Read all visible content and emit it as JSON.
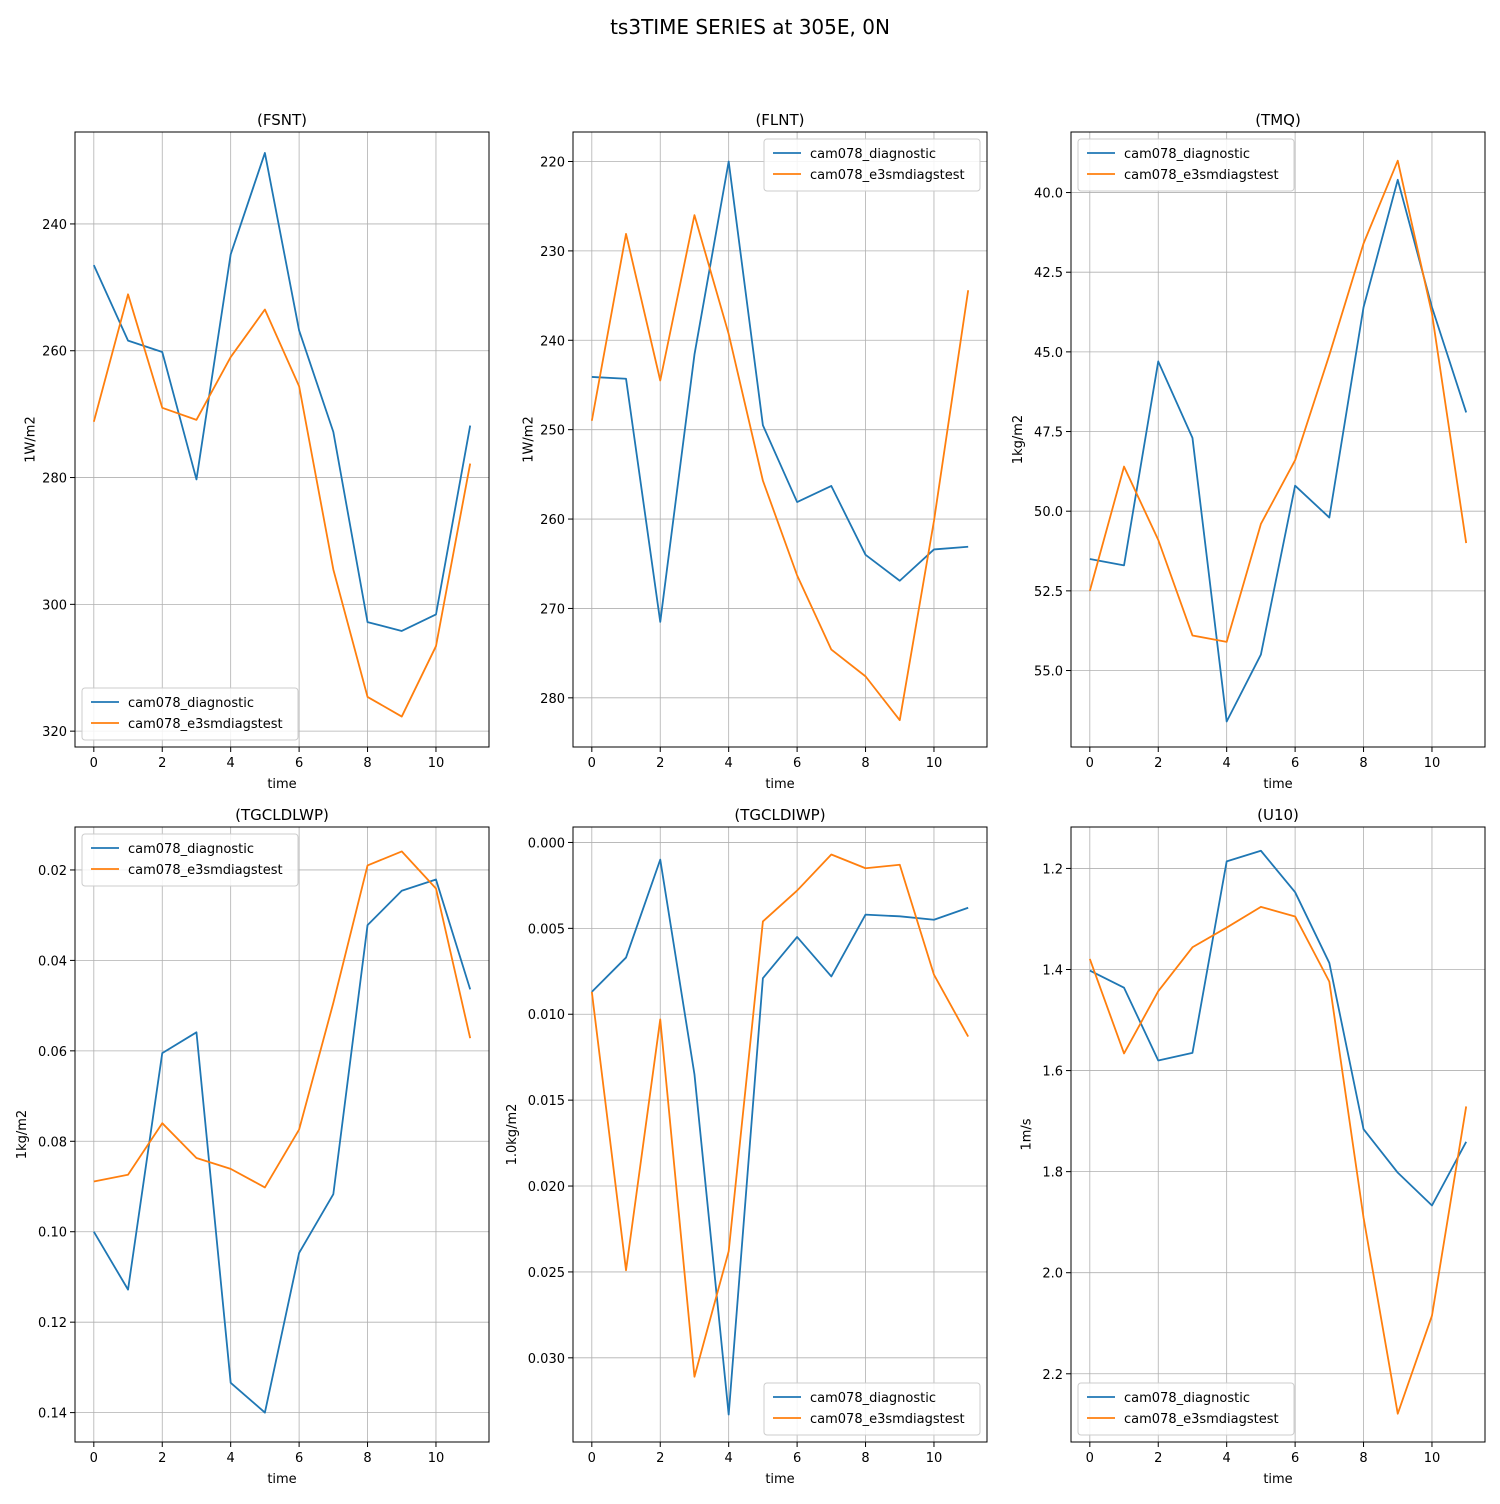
{
  "figure": {
    "title": "ts3TIME SERIES at 305E, 0N"
  },
  "colors": {
    "series1": "#1f77b4",
    "series2": "#ff7f0e",
    "grid": "#b0b0b0"
  },
  "chart_data": [
    {
      "type": "line",
      "title": "(FSNT)",
      "xlabel": "time",
      "ylabel": "1W/m2",
      "xlim": [
        -0.55,
        11.55
      ],
      "ylim": [
        225.5,
        322.5
      ],
      "y_inverted": true,
      "xticks": [
        0,
        2,
        4,
        6,
        8,
        10
      ],
      "yticks": [
        240,
        260,
        280,
        300,
        320
      ],
      "ytick_labels": [
        "240",
        "260",
        "280",
        "300",
        "320"
      ],
      "legend": "lower-left",
      "grid": true,
      "x": [
        0,
        1,
        2,
        3,
        4,
        5,
        6,
        7,
        8,
        9,
        10,
        11
      ],
      "series": [
        {
          "name": "cam078_diagnostic",
          "values": [
            246.5,
            258.4,
            260.2,
            280.3,
            244.8,
            228.8,
            256.8,
            272.8,
            302.8,
            304.2,
            301.6,
            271.8
          ]
        },
        {
          "name": "cam078_e3smdiagstest",
          "values": [
            271.2,
            251.1,
            269.0,
            270.9,
            261.0,
            253.5,
            265.6,
            294.5,
            314.6,
            317.7,
            306.6,
            277.8
          ]
        }
      ]
    },
    {
      "type": "line",
      "title": "(FLNT)",
      "xlabel": "time",
      "ylabel": "1W/m2",
      "xlim": [
        -0.55,
        11.55
      ],
      "ylim": [
        216.7,
        285.5
      ],
      "y_inverted": true,
      "xticks": [
        0,
        2,
        4,
        6,
        8,
        10
      ],
      "yticks": [
        220,
        230,
        240,
        250,
        260,
        270,
        280
      ],
      "ytick_labels": [
        "220",
        "230",
        "240",
        "250",
        "260",
        "270",
        "280"
      ],
      "legend": "top-right",
      "grid": true,
      "x": [
        0,
        1,
        2,
        3,
        4,
        5,
        6,
        7,
        8,
        9,
        10,
        11
      ],
      "series": [
        {
          "name": "cam078_diagnostic",
          "values": [
            244.1,
            244.3,
            271.5,
            241.6,
            220.0,
            249.5,
            258.1,
            256.3,
            264.0,
            266.9,
            263.4,
            263.1
          ]
        },
        {
          "name": "cam078_e3smdiagstest",
          "values": [
            249.0,
            228.1,
            244.5,
            226.0,
            239.3,
            255.7,
            266.3,
            274.6,
            277.6,
            282.5,
            260.2,
            234.4
          ]
        }
      ]
    },
    {
      "type": "line",
      "title": "(TMQ)",
      "xlabel": "time",
      "ylabel": "1kg/m2",
      "xlim": [
        -0.55,
        11.55
      ],
      "ylim": [
        38.1,
        57.4
      ],
      "y_inverted": true,
      "xticks": [
        0,
        2,
        4,
        6,
        8,
        10
      ],
      "yticks": [
        40.0,
        42.5,
        45.0,
        47.5,
        50.0,
        52.5,
        55.0
      ],
      "ytick_labels": [
        "40.0",
        "42.5",
        "45.0",
        "47.5",
        "50.0",
        "52.5",
        "55.0"
      ],
      "legend": "top-left",
      "grid": true,
      "x": [
        0,
        1,
        2,
        3,
        4,
        5,
        6,
        7,
        8,
        9,
        10,
        11
      ],
      "series": [
        {
          "name": "cam078_diagnostic",
          "values": [
            51.5,
            51.7,
            45.3,
            47.7,
            56.6,
            54.5,
            49.2,
            50.2,
            43.6,
            39.6,
            43.6,
            46.9
          ]
        },
        {
          "name": "cam078_e3smdiagstest",
          "values": [
            52.5,
            48.6,
            50.9,
            53.9,
            54.1,
            50.4,
            48.4,
            45.1,
            41.6,
            39.0,
            43.8,
            51.0
          ]
        }
      ]
    },
    {
      "type": "line",
      "title": "(TGCLDLWP)",
      "xlabel": "time",
      "ylabel": "1kg/m2",
      "xlim": [
        -0.55,
        11.55
      ],
      "ylim": [
        0.0105,
        0.1465
      ],
      "y_inverted": true,
      "xticks": [
        0,
        2,
        4,
        6,
        8,
        10
      ],
      "yticks": [
        0.02,
        0.04,
        0.06,
        0.08,
        0.1,
        0.12,
        0.14
      ],
      "ytick_labels": [
        "0.02",
        "0.04",
        "0.06",
        "0.08",
        "0.10",
        "0.12",
        "0.14"
      ],
      "legend": "top-left",
      "grid": true,
      "x": [
        0,
        1,
        2,
        3,
        4,
        5,
        6,
        7,
        8,
        9,
        10,
        11
      ],
      "series": [
        {
          "name": "cam078_diagnostic",
          "values": [
            0.1,
            0.1128,
            0.0605,
            0.0559,
            0.1334,
            0.14,
            0.1047,
            0.0917,
            0.0322,
            0.0246,
            0.0221,
            0.0464
          ]
        },
        {
          "name": "cam078_e3smdiagstest",
          "values": [
            0.0889,
            0.0874,
            0.076,
            0.0837,
            0.0861,
            0.0902,
            0.0774,
            0.0494,
            0.019,
            0.0159,
            0.0241,
            0.0572
          ]
        }
      ]
    },
    {
      "type": "line",
      "title": "(TGCLDIWP)",
      "xlabel": "time",
      "ylabel": "1.0kg/m2",
      "xlim": [
        -0.55,
        11.55
      ],
      "ylim": [
        -0.0009,
        0.0349
      ],
      "y_inverted": true,
      "xticks": [
        0,
        2,
        4,
        6,
        8,
        10
      ],
      "yticks": [
        0.0,
        0.005,
        0.01,
        0.015,
        0.02,
        0.025,
        0.03
      ],
      "ytick_labels": [
        "0.000",
        "0.005",
        "0.010",
        "0.015",
        "0.020",
        "0.025",
        "0.030"
      ],
      "legend": "lower-right",
      "grid": true,
      "x": [
        0,
        1,
        2,
        3,
        4,
        5,
        6,
        7,
        8,
        9,
        10,
        11
      ],
      "series": [
        {
          "name": "cam078_diagnostic",
          "values": [
            0.0087,
            0.0067,
            0.001,
            0.0135,
            0.0333,
            0.0079,
            0.0055,
            0.0078,
            0.0042,
            0.0043,
            0.0045,
            0.0038
          ]
        },
        {
          "name": "cam078_e3smdiagstest",
          "values": [
            0.0087,
            0.0249,
            0.0103,
            0.0311,
            0.0238,
            0.0046,
            0.0028,
            0.0007,
            0.0015,
            0.0013,
            0.0077,
            0.0113
          ]
        }
      ]
    },
    {
      "type": "line",
      "title": "(U10)",
      "xlabel": "time",
      "ylabel": "1m/s",
      "xlim": [
        -0.55,
        11.55
      ],
      "ylim": [
        1.118,
        2.335
      ],
      "y_inverted": true,
      "xticks": [
        0,
        2,
        4,
        6,
        8,
        10
      ],
      "yticks": [
        1.2,
        1.4,
        1.6,
        1.8,
        2.0,
        2.2
      ],
      "ytick_labels": [
        "1.2",
        "1.4",
        "1.6",
        "1.8",
        "2.0",
        "2.2"
      ],
      "legend": "lower-left",
      "grid": true,
      "x": [
        0,
        1,
        2,
        3,
        4,
        5,
        6,
        7,
        8,
        9,
        10,
        11
      ],
      "series": [
        {
          "name": "cam078_diagnostic",
          "values": [
            1.402,
            1.436,
            1.58,
            1.565,
            1.186,
            1.165,
            1.247,
            1.387,
            1.716,
            1.802,
            1.867,
            1.741
          ]
        },
        {
          "name": "cam078_e3smdiagstest",
          "values": [
            1.379,
            1.566,
            1.443,
            1.356,
            1.317,
            1.276,
            1.295,
            1.424,
            1.891,
            2.279,
            2.085,
            1.671
          ]
        }
      ]
    }
  ]
}
